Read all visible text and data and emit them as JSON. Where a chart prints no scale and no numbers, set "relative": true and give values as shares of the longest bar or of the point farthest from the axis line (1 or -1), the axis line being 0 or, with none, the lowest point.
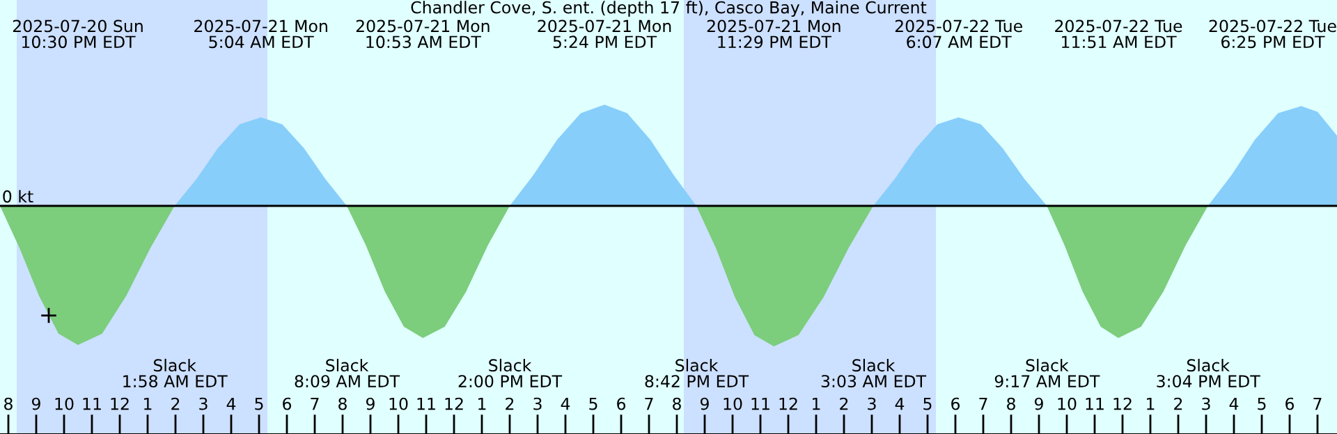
{
  "chart_data": {
    "type": "area",
    "relative": true,
    "title": "Chandler Cove, S. ent. (depth 17 ft), Casco Bay, Maine Current",
    "xlim": [
      "2025-07-20T19:42",
      "2025-07-22T19:42"
    ],
    "xticks": [
      {
        "value": "2025-07-20T20:00",
        "label": "8"
      },
      {
        "value": "2025-07-20T21:00",
        "label": "9"
      },
      {
        "value": "2025-07-20T22:00",
        "label": "10"
      },
      {
        "value": "2025-07-20T23:00",
        "label": "11"
      },
      {
        "value": "2025-07-21T00:00",
        "label": "12"
      },
      {
        "value": "2025-07-21T01:00",
        "label": "1"
      },
      {
        "value": "2025-07-21T02:00",
        "label": "2"
      },
      {
        "value": "2025-07-21T03:00",
        "label": "3"
      },
      {
        "value": "2025-07-21T04:00",
        "label": "4"
      },
      {
        "value": "2025-07-21T05:00",
        "label": "5"
      },
      {
        "value": "2025-07-21T06:00",
        "label": "6"
      },
      {
        "value": "2025-07-21T07:00",
        "label": "7"
      },
      {
        "value": "2025-07-21T08:00",
        "label": "8"
      },
      {
        "value": "2025-07-21T09:00",
        "label": "9"
      },
      {
        "value": "2025-07-21T10:00",
        "label": "10"
      },
      {
        "value": "2025-07-21T11:00",
        "label": "11"
      },
      {
        "value": "2025-07-21T12:00",
        "label": "12"
      },
      {
        "value": "2025-07-21T13:00",
        "label": "1"
      },
      {
        "value": "2025-07-21T14:00",
        "label": "2"
      },
      {
        "value": "2025-07-21T15:00",
        "label": "3"
      },
      {
        "value": "2025-07-21T16:00",
        "label": "4"
      },
      {
        "value": "2025-07-21T17:00",
        "label": "5"
      },
      {
        "value": "2025-07-21T18:00",
        "label": "6"
      },
      {
        "value": "2025-07-21T19:00",
        "label": "7"
      },
      {
        "value": "2025-07-21T20:00",
        "label": "8"
      },
      {
        "value": "2025-07-21T21:00",
        "label": "9"
      },
      {
        "value": "2025-07-21T22:00",
        "label": "10"
      },
      {
        "value": "2025-07-21T23:00",
        "label": "11"
      },
      {
        "value": "2025-07-22T00:00",
        "label": "12"
      },
      {
        "value": "2025-07-22T01:00",
        "label": "1"
      },
      {
        "value": "2025-07-22T02:00",
        "label": "2"
      },
      {
        "value": "2025-07-22T03:00",
        "label": "3"
      },
      {
        "value": "2025-07-22T04:00",
        "label": "4"
      },
      {
        "value": "2025-07-22T05:00",
        "label": "5"
      },
      {
        "value": "2025-07-22T06:00",
        "label": "6"
      },
      {
        "value": "2025-07-22T07:00",
        "label": "7"
      },
      {
        "value": "2025-07-22T08:00",
        "label": "8"
      },
      {
        "value": "2025-07-22T09:00",
        "label": "9"
      },
      {
        "value": "2025-07-22T10:00",
        "label": "10"
      },
      {
        "value": "2025-07-22T11:00",
        "label": "11"
      },
      {
        "value": "2025-07-22T12:00",
        "label": "12"
      },
      {
        "value": "2025-07-22T13:00",
        "label": "1"
      },
      {
        "value": "2025-07-22T14:00",
        "label": "2"
      },
      {
        "value": "2025-07-22T15:00",
        "label": "3"
      },
      {
        "value": "2025-07-22T16:00",
        "label": "4"
      },
      {
        "value": "2025-07-22T17:00",
        "label": "5"
      },
      {
        "value": "2025-07-22T18:00",
        "label": "6"
      },
      {
        "value": "2025-07-22T19:00",
        "label": "7"
      }
    ],
    "series": [
      {
        "color": "#7ccd7c",
        "x": [
          "2025-07-20T19:42",
          "2025-07-20T20:24",
          "2025-07-20T21:06",
          "2025-07-20T21:48",
          "2025-07-20T22:30",
          "2025-07-20T23:22",
          "2025-07-21T00:14",
          "2025-07-21T01:06",
          "2025-07-21T01:58",
          "2025-07-21T08:09",
          "2025-07-21T08:50",
          "2025-07-21T09:31",
          "2025-07-21T10:12",
          "2025-07-21T10:53",
          "2025-07-21T11:40",
          "2025-07-21T12:26",
          "2025-07-21T13:13",
          "2025-07-21T14:00",
          "2025-07-21T20:42",
          "2025-07-21T21:24",
          "2025-07-21T22:05",
          "2025-07-21T22:47",
          "2025-07-21T23:29",
          "2025-07-22T00:22",
          "2025-07-22T01:16",
          "2025-07-22T02:10",
          "2025-07-22T03:03",
          "2025-07-22T09:17",
          "2025-07-22T09:55",
          "2025-07-22T10:34",
          "2025-07-22T11:13",
          "2025-07-22T11:51",
          "2025-07-22T12:40",
          "2025-07-22T13:28",
          "2025-07-22T14:16",
          "2025-07-22T15:04"
        ],
        "values": [
          0,
          -0.3,
          -0.64,
          -0.91,
          -0.99,
          -0.91,
          -0.64,
          -0.3,
          0,
          0,
          -0.28,
          -0.61,
          -0.86,
          -0.94,
          -0.86,
          -0.61,
          -0.28,
          0,
          0,
          -0.3,
          -0.65,
          -0.92,
          -1.0,
          -0.92,
          -0.65,
          -0.3,
          0,
          0,
          -0.28,
          -0.61,
          -0.86,
          -0.94,
          -0.86,
          -0.61,
          -0.28,
          0
        ]
      },
      {
        "color": "#87cefa",
        "x": [
          "2025-07-21T01:58",
          "2025-07-21T02:45",
          "2025-07-21T03:31",
          "2025-07-21T04:18",
          "2025-07-21T05:04",
          "2025-07-21T05:50",
          "2025-07-21T06:37",
          "2025-07-21T07:23",
          "2025-07-21T08:09",
          "2025-07-21T14:00",
          "2025-07-21T14:51",
          "2025-07-21T15:42",
          "2025-07-21T16:33",
          "2025-07-21T17:24",
          "2025-07-21T18:13",
          "2025-07-21T19:03",
          "2025-07-21T19:53",
          "2025-07-21T20:42",
          "2025-07-22T03:03",
          "2025-07-22T03:49",
          "2025-07-22T04:35",
          "2025-07-22T05:21",
          "2025-07-22T06:07",
          "2025-07-22T06:55",
          "2025-07-22T07:42",
          "2025-07-22T08:29",
          "2025-07-22T09:17",
          "2025-07-22T15:04",
          "2025-07-22T15:55",
          "2025-07-22T16:45",
          "2025-07-22T17:35",
          "2025-07-22T18:25",
          "2025-07-22T19:00",
          "2025-07-22T19:42"
        ],
        "values": [
          0,
          0.19,
          0.41,
          0.58,
          0.63,
          0.58,
          0.41,
          0.19,
          0,
          0,
          0.22,
          0.47,
          0.66,
          0.72,
          0.66,
          0.47,
          0.22,
          0,
          0,
          0.19,
          0.41,
          0.58,
          0.63,
          0.58,
          0.41,
          0.19,
          0,
          0,
          0.22,
          0.47,
          0.66,
          0.71,
          0.67,
          0.5
        ]
      },
      {
        "type": "scatter",
        "marker": "cross",
        "color": "#000000",
        "x": [
          "2025-07-20T21:27"
        ],
        "values": [
          -0.78
        ]
      }
    ],
    "ref_lines": [
      {
        "axis": "y",
        "value": 0,
        "label": "0 kt",
        "color": "#000000"
      }
    ],
    "bands": [
      {
        "axis": "x",
        "from": "2025-07-20T20:18",
        "to": "2025-07-21T05:18",
        "color": "#cce0ff"
      },
      {
        "axis": "x",
        "from": "2025-07-21T20:15",
        "to": "2025-07-22T05:18",
        "color": "#cce0ff"
      }
    ],
    "annotations": [
      "2025-07-20 Sun\n10:30 PM EDT",
      "2025-07-21 Mon\n5:04 AM EDT",
      "2025-07-21 Mon\n10:53 AM EDT",
      "2025-07-21 Mon\n5:24 PM EDT",
      "2025-07-21 Mon\n11:29 PM EDT",
      "2025-07-22 Tue\n6:07 AM EDT",
      "2025-07-22 Tue\n11:51 AM EDT",
      "2025-07-22 Tue\n6:25 PM EDT",
      "Slack\n1:58 AM EDT",
      "Slack\n8:09 AM EDT",
      "Slack\n2:00 PM EDT",
      "Slack\n8:42 PM EDT",
      "Slack\n3:03 AM EDT",
      "Slack\n9:17 AM EDT",
      "Slack\n3:04 PM EDT"
    ]
  }
}
